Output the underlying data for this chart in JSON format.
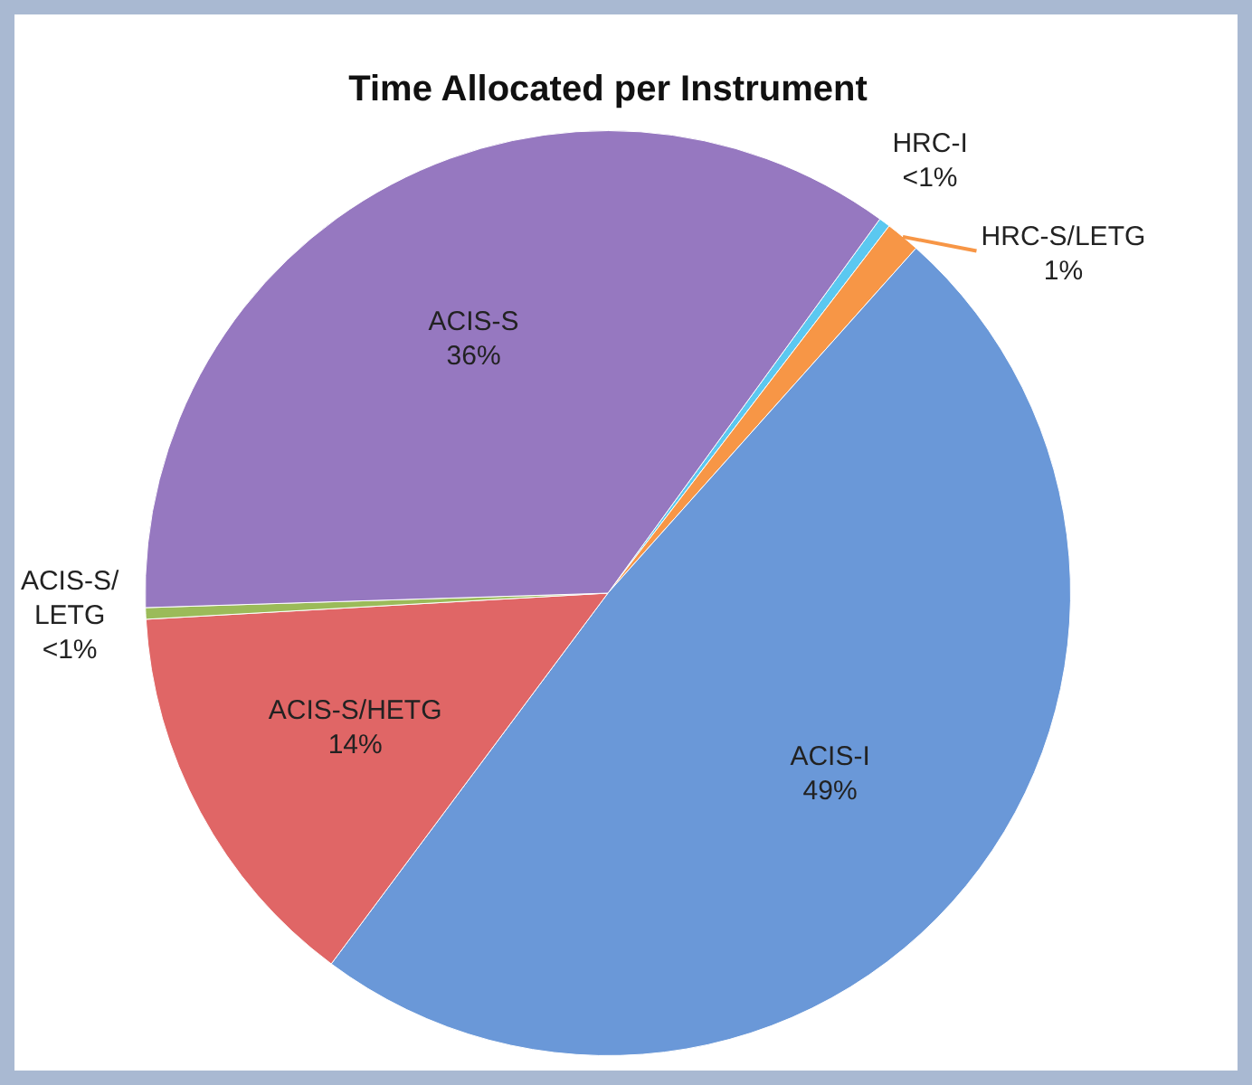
{
  "chart_data": {
    "type": "pie",
    "title": "Time Allocated per Instrument",
    "categories": [
      "HRC-I",
      "HRC-S/LETG",
      "ACIS-I",
      "ACIS-S/HETG",
      "ACIS-S/LETG",
      "ACIS-S"
    ],
    "values": [
      0.4,
      1.2,
      48.6,
      13.9,
      0.4,
      35.5
    ],
    "value_labels": [
      "<1%",
      "1%",
      "49%",
      "14%",
      "<1%",
      "36%"
    ],
    "colors": [
      "#5bc8f0",
      "#f79646",
      "#6a98d8",
      "#e06666",
      "#9bbb59",
      "#9678c0"
    ],
    "legend": false
  }
}
